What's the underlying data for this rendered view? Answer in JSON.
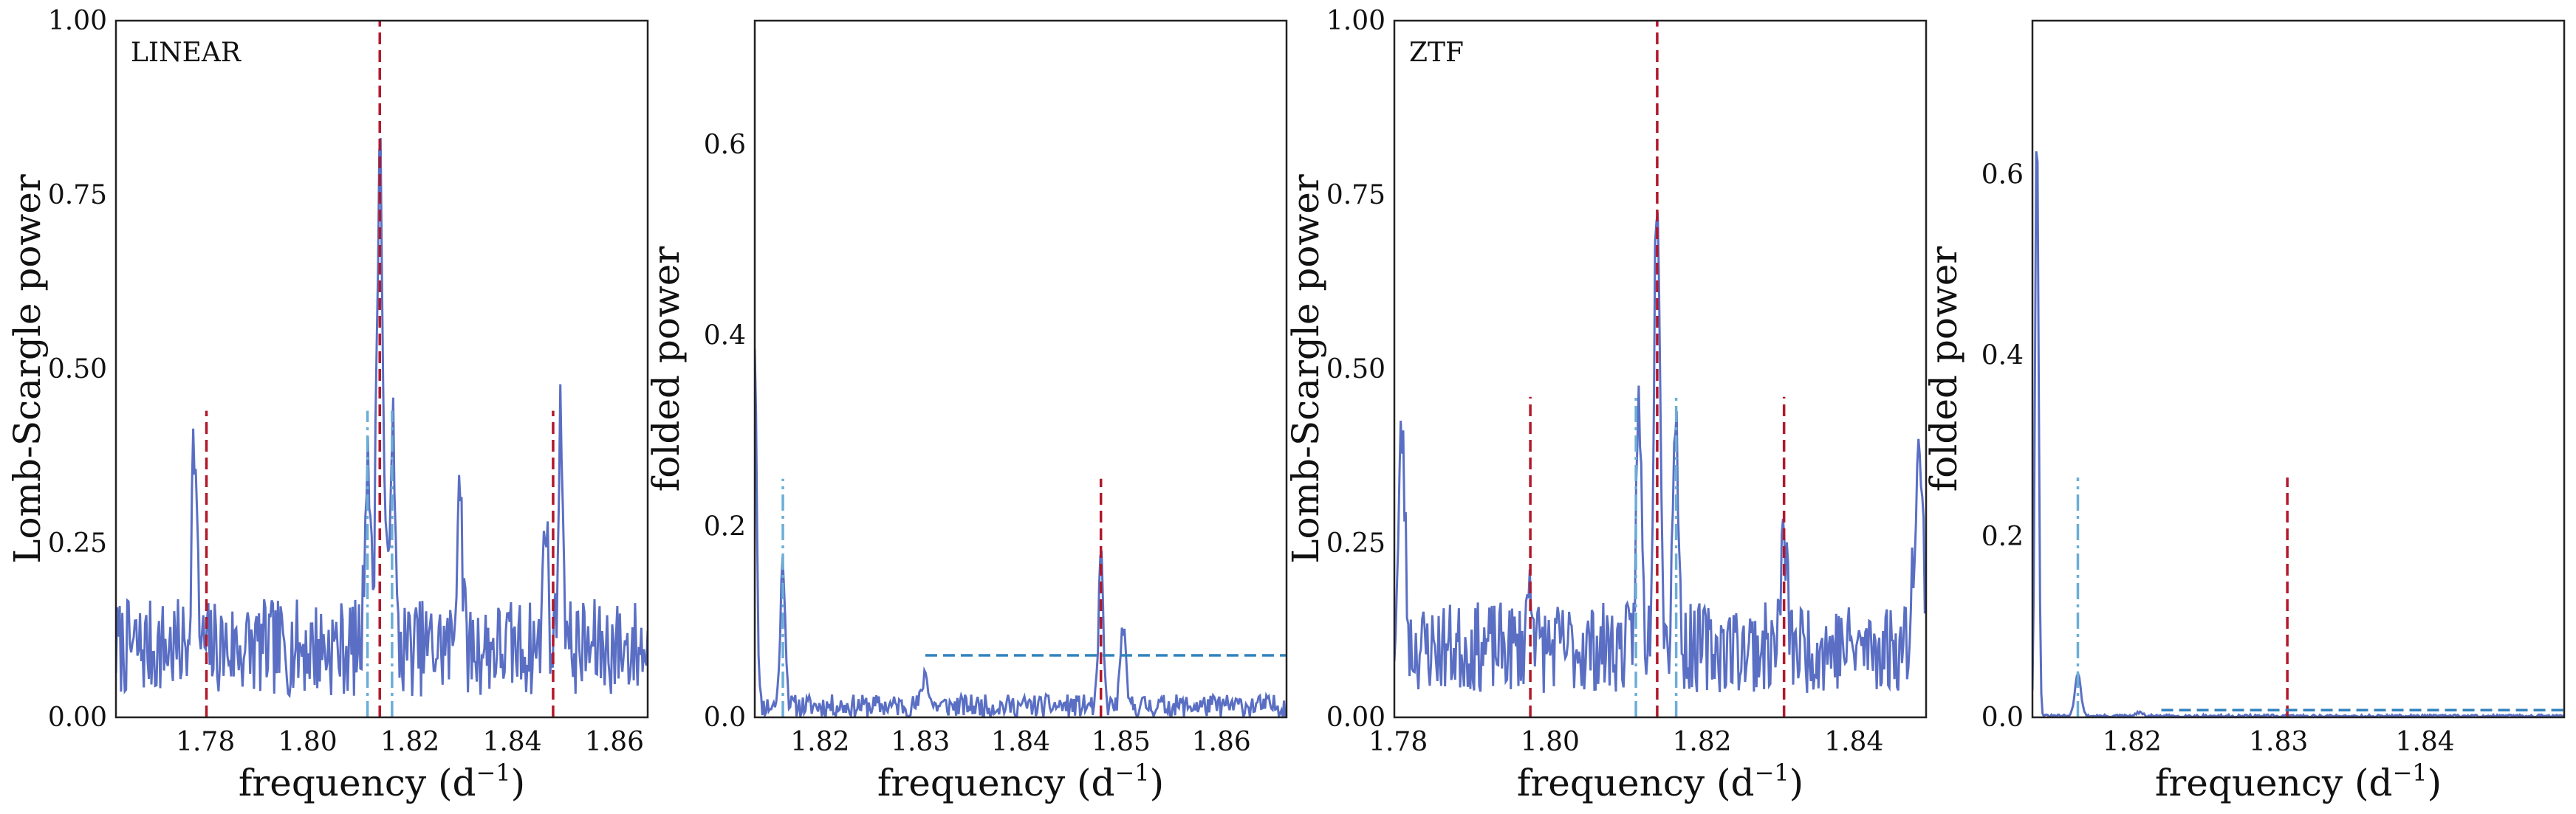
{
  "chart_data": [
    {
      "type": "line",
      "panel_label": "LINEAR",
      "xlabel": "frequency (d",
      "xlabel_sup": "−1",
      "xlabel_end": ")",
      "ylabel": "Lomb-Scargle power",
      "xlim": [
        1.7625,
        1.8665
      ],
      "ylim": [
        0,
        1.0
      ],
      "xticks": [
        1.78,
        1.8,
        1.82,
        1.84,
        1.86
      ],
      "xtick_labels": [
        "1.78",
        "1.80",
        "1.82",
        "1.84",
        "1.86"
      ],
      "yticks": [
        0,
        0.25,
        0.5,
        0.75,
        1.0
      ],
      "ytick_labels": [
        "0.00",
        "0.25",
        "0.50",
        "0.75",
        "1.00"
      ],
      "noise": {
        "base": 0.1,
        "amp": 0.07,
        "seed": 7,
        "n": 420
      },
      "peaks": [
        {
          "x": 1.8141,
          "y": 0.72,
          "w": 0.0006
        },
        {
          "x": 1.8117,
          "y": 0.3,
          "w": 0.0005
        },
        {
          "x": 1.8165,
          "y": 0.33,
          "w": 0.0005
        },
        {
          "x": 1.7778,
          "y": 0.3,
          "w": 0.0005
        },
        {
          "x": 1.8495,
          "y": 0.32,
          "w": 0.0005
        },
        {
          "x": 1.8465,
          "y": 0.22,
          "w": 0.0004
        },
        {
          "x": 1.8297,
          "y": 0.26,
          "w": 0.0005
        }
      ],
      "vlines": [
        {
          "x": 1.8141,
          "y0": 0,
          "y1": 1.0,
          "style": "dashed",
          "color": "#b2182b"
        },
        {
          "x": 1.7802,
          "y0": 0,
          "y1": 0.44,
          "style": "dashed",
          "color": "#b2182b"
        },
        {
          "x": 1.848,
          "y0": 0,
          "y1": 0.44,
          "style": "dashed",
          "color": "#b2182b"
        },
        {
          "x": 1.8117,
          "y0": 0,
          "y1": 0.44,
          "style": "dashdot",
          "color": "#6baed6"
        },
        {
          "x": 1.8165,
          "y0": 0,
          "y1": 0.44,
          "style": "dashdot",
          "color": "#6baed6"
        }
      ],
      "hlines": []
    },
    {
      "type": "line",
      "xlabel": "frequency (d",
      "xlabel_sup": "−1",
      "xlabel_end": ")",
      "ylabel": "folded power",
      "xlim": [
        1.8135,
        1.8665
      ],
      "ylim": [
        0,
        0.73
      ],
      "xticks": [
        1.82,
        1.83,
        1.84,
        1.85,
        1.86
      ],
      "xtick_labels": [
        "1.82",
        "1.83",
        "1.84",
        "1.85",
        "1.86"
      ],
      "yticks": [
        0,
        0.2,
        0.4,
        0.6
      ],
      "ytick_labels": [
        "0.0",
        "0.2",
        "0.4",
        "0.6"
      ],
      "noise": {
        "base": 0.012,
        "amp": 0.012,
        "seed": 11,
        "n": 420
      },
      "peaks": [
        {
          "x": 1.8135,
          "y": 0.38,
          "w": 0.0002
        },
        {
          "x": 1.8163,
          "y": 0.15,
          "w": 0.00025
        },
        {
          "x": 1.848,
          "y": 0.16,
          "w": 0.00022
        },
        {
          "x": 1.8502,
          "y": 0.085,
          "w": 0.00025
        },
        {
          "x": 1.8305,
          "y": 0.035,
          "w": 0.0003
        }
      ],
      "vlines": [
        {
          "x": 1.8163,
          "y0": 0,
          "y1": 0.25,
          "style": "dashdot",
          "color": "#6baed6"
        },
        {
          "x": 1.848,
          "y0": 0,
          "y1": 0.25,
          "style": "dashed",
          "color": "#b2182b"
        }
      ],
      "hlines": [
        {
          "y": 0.065,
          "x0": 1.8305,
          "x1": 1.8665,
          "style": "dashed",
          "color": "#3182bd"
        }
      ]
    },
    {
      "type": "line",
      "panel_label": "ZTF",
      "xlabel": "frequency (d",
      "xlabel_sup": "−1",
      "xlabel_end": ")",
      "ylabel": "Lomb-Scargle power",
      "xlim": [
        1.7795,
        1.8495
      ],
      "ylim": [
        0,
        1.0
      ],
      "xticks": [
        1.78,
        1.8,
        1.82,
        1.84
      ],
      "xtick_labels": [
        "1.78",
        "1.80",
        "1.82",
        "1.84"
      ],
      "yticks": [
        0,
        0.25,
        0.5,
        0.75,
        1.0
      ],
      "ytick_labels": [
        "0.00",
        "0.25",
        "0.50",
        "0.75",
        "1.00"
      ],
      "noise": {
        "base": 0.1,
        "amp": 0.065,
        "seed": 23,
        "n": 420
      },
      "peaks": [
        {
          "x": 1.8141,
          "y": 0.69,
          "w": 0.0004
        },
        {
          "x": 1.8117,
          "y": 0.34,
          "w": 0.00035
        },
        {
          "x": 1.8165,
          "y": 0.35,
          "w": 0.00035
        },
        {
          "x": 1.7805,
          "y": 0.31,
          "w": 0.0004
        },
        {
          "x": 1.8485,
          "y": 0.27,
          "w": 0.0006
        },
        {
          "x": 1.8308,
          "y": 0.16,
          "w": 0.0004
        },
        {
          "x": 1.7974,
          "y": 0.1,
          "w": 0.0004
        }
      ],
      "vlines": [
        {
          "x": 1.8141,
          "y0": 0,
          "y1": 1.0,
          "style": "dashed",
          "color": "#b2182b"
        },
        {
          "x": 1.7974,
          "y0": 0,
          "y1": 0.46,
          "style": "dashed",
          "color": "#b2182b"
        },
        {
          "x": 1.8308,
          "y0": 0,
          "y1": 0.46,
          "style": "dashed",
          "color": "#b2182b"
        },
        {
          "x": 1.8113,
          "y0": 0,
          "y1": 0.46,
          "style": "dashdot",
          "color": "#6baed6"
        },
        {
          "x": 1.8166,
          "y0": 0,
          "y1": 0.46,
          "style": "dashdot",
          "color": "#6baed6"
        }
      ],
      "hlines": []
    },
    {
      "type": "line",
      "xlabel": "frequency (d",
      "xlabel_sup": "−1",
      "xlabel_end": ")",
      "ylabel": "folded power",
      "xlim": [
        1.8132,
        1.8495
      ],
      "ylim": [
        0,
        0.77
      ],
      "xticks": [
        1.82,
        1.83,
        1.84
      ],
      "xtick_labels": [
        "1.82",
        "1.83",
        "1.84"
      ],
      "yticks": [
        0,
        0.2,
        0.4,
        0.6
      ],
      "ytick_labels": [
        "0.0",
        "0.2",
        "0.4",
        "0.6"
      ],
      "noise": {
        "base": 0.0015,
        "amp": 0.0015,
        "seed": 31,
        "n": 420
      },
      "peaks": [
        {
          "x": 1.8135,
          "y": 0.66,
          "w": 0.00012
        },
        {
          "x": 1.8163,
          "y": 0.048,
          "w": 0.0002
        },
        {
          "x": 1.8205,
          "y": 0.004,
          "w": 0.0002
        }
      ],
      "vlines": [
        {
          "x": 1.8163,
          "y0": 0,
          "y1": 0.265,
          "style": "dashdot",
          "color": "#6baed6"
        },
        {
          "x": 1.8306,
          "y0": 0,
          "y1": 0.265,
          "style": "dashed",
          "color": "#b2182b"
        }
      ],
      "hlines": [
        {
          "y": 0.008,
          "x0": 1.822,
          "x1": 1.8495,
          "style": "dashed",
          "color": "#3182bd"
        }
      ]
    }
  ],
  "colors": {
    "periodogram": "#5a6fc4",
    "true_period": "#b2182b",
    "alias": "#6baed6",
    "threshold": "#3182bd"
  }
}
